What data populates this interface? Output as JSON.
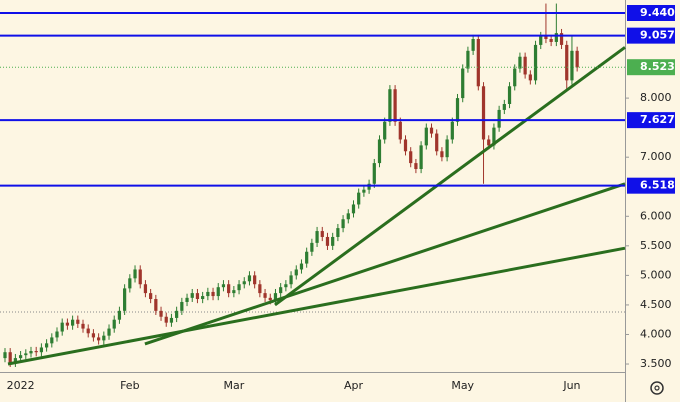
{
  "chart_data": {
    "type": "candlestick",
    "categories": [
      null,
      null,
      null,
      "2022",
      null,
      null,
      null,
      null,
      null,
      null,
      null,
      null,
      null,
      null,
      null,
      null,
      null,
      null,
      null,
      null,
      null,
      null,
      null,
      null,
      "Feb",
      null,
      null,
      null,
      null,
      null,
      null,
      null,
      null,
      null,
      null,
      null,
      null,
      null,
      null,
      null,
      null,
      null,
      null,
      null,
      "Mar",
      null,
      null,
      null,
      null,
      null,
      null,
      null,
      null,
      null,
      null,
      null,
      null,
      null,
      null,
      null,
      null,
      null,
      null,
      null,
      null,
      null,
      null,
      "Apr",
      null,
      null,
      null,
      null,
      null,
      null,
      null,
      null,
      null,
      null,
      null,
      null,
      null,
      null,
      null,
      null,
      null,
      null,
      null,
      null,
      "May",
      null,
      null,
      null,
      null,
      null,
      null,
      null,
      null,
      null,
      null,
      null,
      null,
      null,
      null,
      null,
      null,
      null,
      null,
      null,
      null,
      "Jun",
      null
    ],
    "open": [
      3.6,
      3.7,
      3.52,
      3.6,
      3.65,
      3.68,
      3.72,
      3.7,
      3.78,
      3.85,
      3.95,
      4.05,
      4.2,
      4.15,
      4.25,
      4.18,
      4.1,
      4.02,
      3.95,
      3.9,
      3.98,
      4.1,
      4.25,
      4.4,
      4.78,
      4.95,
      5.1,
      4.85,
      4.7,
      4.6,
      4.4,
      4.3,
      4.2,
      4.28,
      4.4,
      4.55,
      4.62,
      4.7,
      4.6,
      4.65,
      4.72,
      4.65,
      4.8,
      4.85,
      4.7,
      4.75,
      4.85,
      4.9,
      5.0,
      4.85,
      4.7,
      4.62,
      4.58,
      4.7,
      4.8,
      4.85,
      5.0,
      5.1,
      5.2,
      5.4,
      5.55,
      5.75,
      5.65,
      5.5,
      5.65,
      5.8,
      5.95,
      6.05,
      6.2,
      6.4,
      6.45,
      6.55,
      6.9,
      7.3,
      7.6,
      8.15,
      7.6,
      7.3,
      7.1,
      6.9,
      6.8,
      7.2,
      7.5,
      7.4,
      7.1,
      7.0,
      7.3,
      7.6,
      8.0,
      8.5,
      8.8,
      9.0,
      8.2,
      7.3,
      7.2,
      7.5,
      7.8,
      7.9,
      8.2,
      8.5,
      8.7,
      8.4,
      8.3,
      8.9,
      9.05,
      9.0,
      8.95,
      9.1,
      8.9,
      8.3,
      8.8
    ],
    "high": [
      3.77,
      3.77,
      3.67,
      3.72,
      3.75,
      3.79,
      3.79,
      3.85,
      3.92,
      4.02,
      4.12,
      4.27,
      4.27,
      4.32,
      4.32,
      4.25,
      4.17,
      4.09,
      4.02,
      4.05,
      4.17,
      4.32,
      4.47,
      4.85,
      5.02,
      5.17,
      5.17,
      4.92,
      4.77,
      4.67,
      4.47,
      4.37,
      4.35,
      4.47,
      4.62,
      4.69,
      4.77,
      4.77,
      4.72,
      4.79,
      4.79,
      4.87,
      4.92,
      4.92,
      4.82,
      4.92,
      4.97,
      5.07,
      5.07,
      4.92,
      4.77,
      4.69,
      4.77,
      4.87,
      4.92,
      5.07,
      5.17,
      5.27,
      5.47,
      5.62,
      5.82,
      5.82,
      5.72,
      5.72,
      5.87,
      6.02,
      6.12,
      6.27,
      6.47,
      6.52,
      6.62,
      6.97,
      7.37,
      7.67,
      8.22,
      8.22,
      7.67,
      7.37,
      7.17,
      6.97,
      7.27,
      7.57,
      7.57,
      7.47,
      7.17,
      7.37,
      7.67,
      8.07,
      8.57,
      8.87,
      9.07,
      9.07,
      8.27,
      7.37,
      7.57,
      7.87,
      7.97,
      8.27,
      8.57,
      8.77,
      8.77,
      8.47,
      8.97,
      9.12,
      9.6,
      9.07,
      9.6,
      9.17,
      8.97,
      9.05,
      8.87
    ],
    "low": [
      3.53,
      3.45,
      3.45,
      3.53,
      3.58,
      3.61,
      3.63,
      3.63,
      3.71,
      3.78,
      3.88,
      3.98,
      4.08,
      4.08,
      4.11,
      4.03,
      3.95,
      3.88,
      3.83,
      3.83,
      3.91,
      4.03,
      4.18,
      4.33,
      4.71,
      4.88,
      4.78,
      4.63,
      4.53,
      4.33,
      4.23,
      4.13,
      4.13,
      4.21,
      4.33,
      4.48,
      4.55,
      4.53,
      4.53,
      4.58,
      4.58,
      4.58,
      4.73,
      4.63,
      4.63,
      4.68,
      4.78,
      4.83,
      4.78,
      4.63,
      4.55,
      4.51,
      4.51,
      4.63,
      4.73,
      4.78,
      4.93,
      5.03,
      5.13,
      5.33,
      5.48,
      5.58,
      5.43,
      5.43,
      5.58,
      5.73,
      5.88,
      5.98,
      6.13,
      6.33,
      6.38,
      6.48,
      6.83,
      7.23,
      7.53,
      7.53,
      7.23,
      7.03,
      6.83,
      6.73,
      6.73,
      7.13,
      7.33,
      7.03,
      6.93,
      6.93,
      7.23,
      7.53,
      7.93,
      8.43,
      8.73,
      8.13,
      6.55,
      7.13,
      7.13,
      7.43,
      7.73,
      7.83,
      8.13,
      8.43,
      8.33,
      8.23,
      8.23,
      8.83,
      8.93,
      8.88,
      8.88,
      8.83,
      8.15,
      8.23,
      8.45
    ],
    "close": [
      3.7,
      3.52,
      3.6,
      3.65,
      3.68,
      3.72,
      3.7,
      3.78,
      3.85,
      3.95,
      4.05,
      4.2,
      4.15,
      4.25,
      4.18,
      4.1,
      4.02,
      3.95,
      3.9,
      3.98,
      4.1,
      4.25,
      4.4,
      4.78,
      4.95,
      5.1,
      4.85,
      4.7,
      4.6,
      4.4,
      4.3,
      4.2,
      4.28,
      4.4,
      4.55,
      4.62,
      4.7,
      4.6,
      4.65,
      4.72,
      4.65,
      4.8,
      4.85,
      4.7,
      4.75,
      4.85,
      4.9,
      5.0,
      4.85,
      4.7,
      4.62,
      4.58,
      4.7,
      4.8,
      4.85,
      5.0,
      5.1,
      5.2,
      5.4,
      5.55,
      5.75,
      5.65,
      5.5,
      5.65,
      5.8,
      5.95,
      6.05,
      6.2,
      6.4,
      6.45,
      6.55,
      6.9,
      7.3,
      7.6,
      8.15,
      7.6,
      7.3,
      7.1,
      6.9,
      6.8,
      7.2,
      7.5,
      7.4,
      7.1,
      7.0,
      7.3,
      7.6,
      8.0,
      8.5,
      8.8,
      9.0,
      8.2,
      7.3,
      7.2,
      7.5,
      7.8,
      7.9,
      8.2,
      8.5,
      8.7,
      8.4,
      8.3,
      8.9,
      9.05,
      9.0,
      8.95,
      9.1,
      8.9,
      8.3,
      8.8,
      8.52
    ],
    "up_color": "#2e7d32",
    "down_color": "#a0352c",
    "xlim": [
      -0.96,
      119.2
    ],
    "ylim": [
      3.365,
      9.66
    ],
    "yticks": [
      {
        "value": 3.5,
        "label": "3.500"
      },
      {
        "value": 4.0,
        "label": "4.000"
      },
      {
        "value": 4.5,
        "label": "4.500"
      },
      {
        "value": 5.0,
        "label": "5.000"
      },
      {
        "value": 5.5,
        "label": "5.500"
      },
      {
        "value": 6.0,
        "label": "6.000"
      },
      {
        "value": 7.0,
        "label": "7.000"
      },
      {
        "value": 8.0,
        "label": "8.000"
      }
    ],
    "levels": [
      {
        "value": 9.44,
        "label": "9.440"
      },
      {
        "value": 9.057,
        "label": "9.057"
      },
      {
        "value": 7.627,
        "label": "7.627"
      },
      {
        "value": 6.518,
        "label": "6.518"
      }
    ],
    "level_color": "#1010e8",
    "last_price": {
      "value": 8.523,
      "label": "8.523"
    },
    "last_price_color": "#4caf50",
    "dotted_level": 4.38,
    "trendlines": [
      {
        "x": [
          0.58,
          119.2
        ],
        "y": [
          3.5,
          5.46
        ]
      },
      {
        "x": [
          26.9,
          119.2
        ],
        "y": [
          3.84,
          6.55
        ]
      },
      {
        "x": [
          51.9,
          119.2
        ],
        "y": [
          4.5,
          8.86
        ]
      }
    ],
    "trendline_color": "#2a6e1e"
  }
}
